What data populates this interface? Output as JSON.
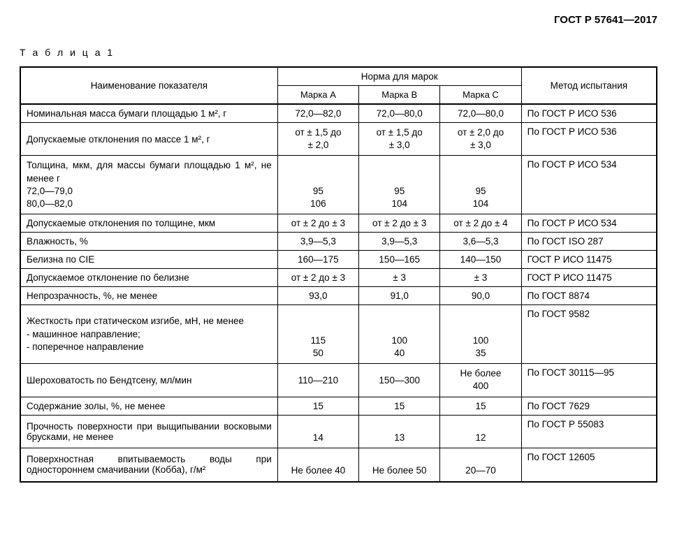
{
  "doc_number": "ГОСТ Р 57641—2017",
  "table_label": "Т а б л и ц а 1",
  "headers": {
    "name": "Наименование показателя",
    "norm": "Норма для марок",
    "mark_a": "Марка А",
    "mark_b": "Марка В",
    "mark_c": "Марка С",
    "method": "Метод испытания"
  },
  "rows": [
    {
      "name": "Номинальная масса бумаги площадью 1 м², г",
      "a": "72,0—82,0",
      "b": "72,0—80,0",
      "c": "72,0—80,0",
      "method": "По ГОСТ Р ИСО 536"
    },
    {
      "name": "Допускаемые отклонения по массе 1 м², г",
      "a": "от ± 1,5 до\n± 2,0",
      "b": "от ± 1,5 до\n± 3,0",
      "c": "от ± 2,0 до\n± 3,0",
      "method": "По ГОСТ Р ИСО 536"
    },
    {
      "name": "Толщина, мкм, для массы бумаги площадью 1 м², не менее г\n72,0—79,0\n80,0—82,0",
      "a": "\n\n95\n106",
      "b": "\n\n95\n104",
      "c": "\n\n95\n104",
      "method": "По ГОСТ Р ИСО 534"
    },
    {
      "name": "Допускаемые отклонения по толщине, мкм",
      "a": "от ± 2 до ± 3",
      "b": "от ± 2 до ± 3",
      "c": "от ± 2 до ± 4",
      "method": "По ГОСТ Р ИСО 534"
    },
    {
      "name": "Влажность, %",
      "a": "3,9—5,3",
      "b": "3,9—5,3",
      "c": "3,6—5,3",
      "method": "По ГОСТ ISO 287"
    },
    {
      "name": "Белизна по CIE",
      "a": "160—175",
      "b": "150—165",
      "c": "140—150",
      "method": "ГОСТ Р ИСО 11475"
    },
    {
      "name": "Допускаемое отклонение по белизне",
      "a": "от ± 2 до ± 3",
      "b": "± 3",
      "c": "± 3",
      "method": "ГОСТ Р ИСО 11475"
    },
    {
      "name": "Непрозрачность, %, не менее",
      "a": "93,0",
      "b": "91,0",
      "c": "90,0",
      "method": "По ГОСТ 8874"
    },
    {
      "name": "Жесткость при статическом изгибе, мН, не менее\n- машинное направление;\n- поперечное направление",
      "a": "\n\n115\n50",
      "b": "\n\n100\n40",
      "c": "\n\n100\n35",
      "method": "По ГОСТ 9582"
    },
    {
      "name": "Шероховатость по Бендтсену, мл/мин",
      "a": "110—210",
      "b": "150—300",
      "c": "Не более\n400",
      "method": "По ГОСТ 30115—95"
    },
    {
      "name": "Содержание золы, %, не менее",
      "a": "15",
      "b": "15",
      "c": "15",
      "method": "По ГОСТ 7629"
    },
    {
      "name": "Прочность поверхности при выщипывании восковыми брусками, не менее",
      "a": "\n14",
      "b": "\n13",
      "c": "\n12",
      "method": "По ГОСТ Р 55083"
    },
    {
      "name": "Поверхностная впитываемость воды при одностороннем смачивании (Кобба), г/м²",
      "a": "\nНе более 40",
      "b": "\nНе более 50",
      "c": "\n20—70",
      "method": "По ГОСТ 12605"
    }
  ]
}
